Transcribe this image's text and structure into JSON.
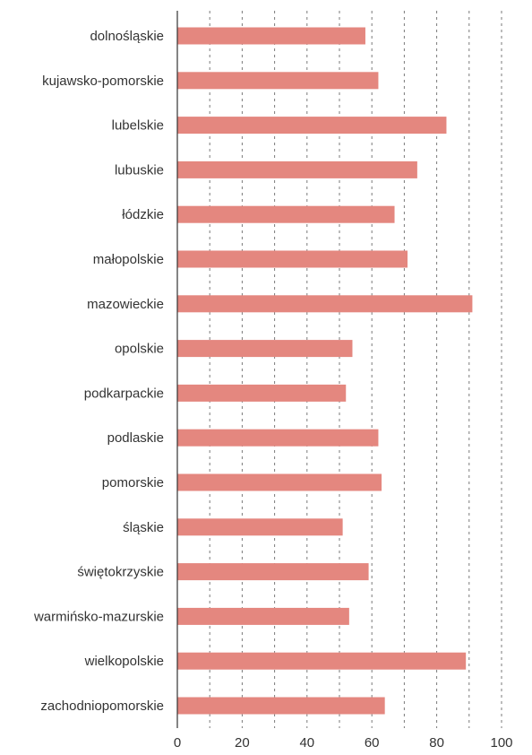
{
  "chart_data": {
    "type": "bar",
    "orientation": "horizontal",
    "title": "",
    "xlabel": "",
    "ylabel": "",
    "xlim": [
      0,
      100
    ],
    "x_ticks": [
      0,
      20,
      40,
      60,
      80,
      100
    ],
    "grid": "vertical dashed, every 10",
    "bar_color": "#e4877f",
    "categories": [
      "dolnośląskie",
      "kujawsko-pomorskie",
      "lubelskie",
      "lubuskie",
      "łódzkie",
      "małopolskie",
      "mazowieckie",
      "opolskie",
      "podkarpackie",
      "podlaskie",
      "pomorskie",
      "śląskie",
      "świętokrzyskie",
      "warmińsko-mazurskie",
      "wielkopolskie",
      "zachodniopomorskie"
    ],
    "values": [
      58,
      62,
      83,
      74,
      67,
      71,
      91,
      54,
      52,
      62,
      63,
      51,
      59,
      53,
      89,
      64
    ]
  }
}
